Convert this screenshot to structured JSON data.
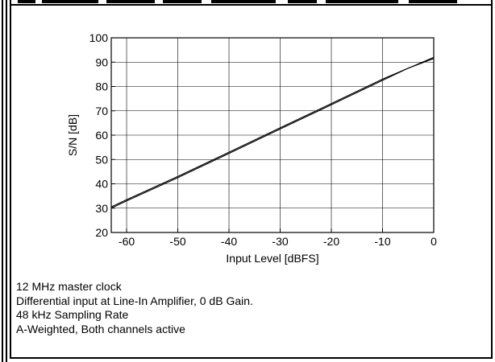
{
  "chart_data": {
    "type": "line",
    "title": "",
    "xlabel": "Input Level [dBFS]",
    "ylabel": "S/N [dB]",
    "xlim": [
      -63,
      0
    ],
    "ylim": [
      20,
      100
    ],
    "x_ticks": [
      "-60",
      "-50",
      "-40",
      "-30",
      "-20",
      "-10",
      "0"
    ],
    "y_ticks": [
      "20",
      "30",
      "40",
      "50",
      "60",
      "70",
      "80",
      "90",
      "100"
    ],
    "grid": true,
    "series": [
      {
        "x": [
          -63,
          -60,
          -50,
          -40,
          -30,
          -20,
          -10,
          -5,
          0
        ],
        "y": [
          30.5,
          33.5,
          43,
          53,
          63,
          73,
          83,
          87.5,
          91.5
        ]
      },
      {
        "x": [
          -63,
          -60,
          -50,
          -40,
          -30,
          -20,
          -10,
          -5,
          0
        ],
        "y": [
          30,
          33,
          42.5,
          52.5,
          62.5,
          72.5,
          82.5,
          87.5,
          92
        ]
      }
    ]
  },
  "notes": [
    "12 MHz master clock",
    "Differential input at Line-In Amplifier, 0 dB Gain.",
    "48 kHz Sampling Rate",
    "A-Weighted, Both channels active"
  ]
}
